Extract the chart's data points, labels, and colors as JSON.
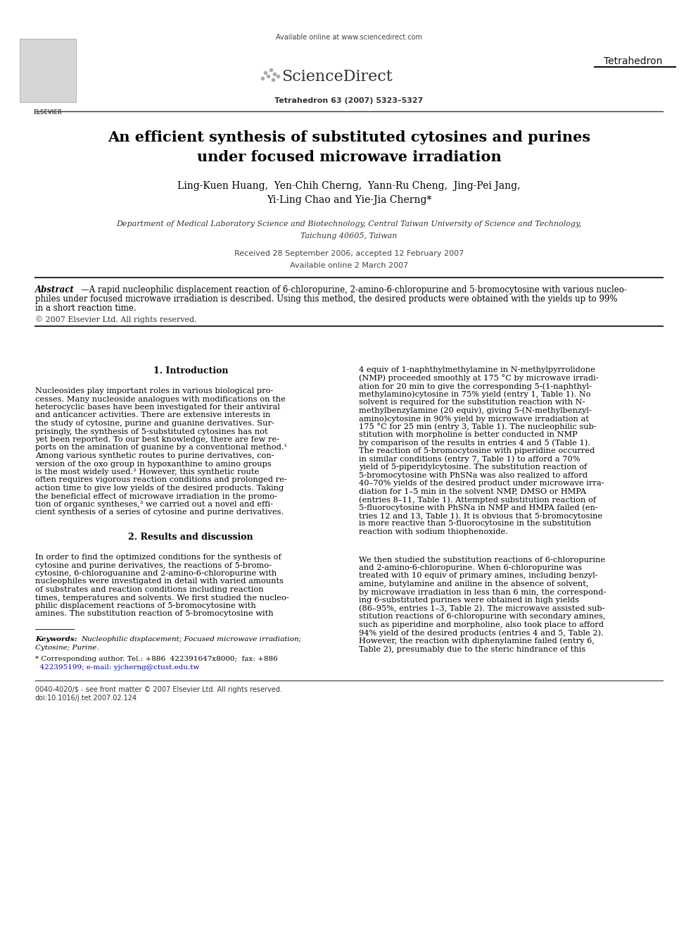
{
  "bg_color": "#ffffff",
  "page_width": 9.92,
  "page_height": 13.23,
  "dpi": 100,
  "header": {
    "available_online": "Available online at www.sciencedirect.com",
    "sciencedirect": "ScienceDirect",
    "journal_ref": "Tetrahedron 63 (2007) 5323–5327",
    "journal_name": "Tetrahedron"
  },
  "title_line1": "An efficient synthesis of substituted cytosines and purines",
  "title_line2": "under focused microwave irradiation",
  "authors_line1": "Ling-Kuen Huang,  Yen-Chih Cherng,  Yann-Ru Cheng,  Jing-Pei Jang,",
  "authors_line2": "Yi-Ling Chao and Yie-Jia Cherng*",
  "affiliation_line1": "Department of Medical Laboratory Science and Biotechnology, Central Taiwan University of Science and Technology,",
  "affiliation_line2": "Taichung 40605, Taiwan",
  "dates_line1": "Received 28 September 2006; accepted 12 February 2007",
  "dates_line2": "Available online 2 March 2007",
  "abstract_label": "Abstract",
  "abstract_body": "—A rapid nucleophilic displacement reaction of 6-chloropurine, 2-amino-6-chloropurine and 5-bromocytosine with various nucleo-\nphiles under focused microwave irradiation is described. Using this method, the desired products were obtained with the yields up to 99%\nin a short reaction time.",
  "copyright": "© 2007 Elsevier Ltd. All rights reserved.",
  "section1_title": "1. Introduction",
  "section1_left": [
    "Nucleosides play important roles in various biological pro-",
    "cesses. Many nucleoside analogues with modifications on the",
    "heterocyclic bases have been investigated for their antiviral",
    "and anticancer activities. There are extensive interests in",
    "the study of cytosine, purine and guanine derivatives. Sur-",
    "prisingly, the synthesis of 5-substituted cytosines has not",
    "yet been reported. To our best knowledge, there are few re-",
    "ports on the amination of guanine by a conventional method.¹",
    "Among various synthetic routes to purine derivatives, con-",
    "version of the oxo group in hypoxanthine to amino groups",
    "is the most widely used.² However, this synthetic route",
    "often requires vigorous reaction conditions and prolonged re-",
    "action time to give low yields of the desired products. Taking",
    "the beneficial effect of microwave irradiation in the promo-",
    "tion of organic syntheses,³ we carried out a novel and effi-",
    "cient synthesis of a series of cytosine and purine derivatives."
  ],
  "section1_right": [
    "4 equiv of 1-naphthylmethylamine in N-methylpyrrolidone",
    "(NMP) proceeded smoothly at 175 °C by microwave irradi-",
    "ation for 20 min to give the corresponding 5-(1-naphthyl-",
    "methylamino)cytosine in 75% yield (entry 1, Table 1). No",
    "solvent is required for the substitution reaction with N-",
    "methylbenzylamine (20 equiv), giving 5-(N-methylbenzyl-",
    "amino)cytosine in 90% yield by microwave irradiation at",
    "175 °C for 25 min (entry 3, Table 1). The nucleophilic sub-",
    "stitution with morpholine is better conducted in NMP",
    "by comparison of the results in entries 4 and 5 (Table 1).",
    "The reaction of 5-bromocytosine with piperidine occurred",
    "in similar conditions (entry 7, Table 1) to afford a 70%",
    "yield of 5-piperidylcytosine. The substitution reaction of",
    "5-bromocytosine with PhSNa was also realized to afford",
    "40–70% yields of the desired product under microwave irra-",
    "diation for 1–5 min in the solvent NMP, DMSO or HMPA",
    "(entries 8–11, Table 1). Attempted substitution reaction of",
    "5-fluorocytosine with PhSNa in NMP and HMPA failed (en-",
    "tries 12 and 13, Table 1). It is obvious that 5-bromocytosine",
    "is more reactive than 5-fluorocytosine in the substitution",
    "reaction with sodium thiophenoxide."
  ],
  "section2_title": "2. Results and discussion",
  "section2_left": [
    "In order to find the optimized conditions for the synthesis of",
    "cytosine and purine derivatives, the reactions of 5-bromo-",
    "cytosine, 6-chloroguanine and 2-amino-6-chloropurine with",
    "nucleophiles were investigated in detail with varied amounts",
    "of substrates and reaction conditions including reaction",
    "times, temperatures and solvents. We first studied the nucleo-",
    "philic displacement reactions of 5-bromocytosine with",
    "amines. The substitution reaction of 5-bromocytosine with"
  ],
  "section2_right": [
    "We then studied the substitution reactions of 6-chloropurine",
    "and 2-amino-6-chloropurine. When 6-chloropurine was",
    "treated with 10 equiv of primary amines, including benzyl-",
    "amine, butylamine and aniline in the absence of solvent,",
    "by microwave irradiation in less than 6 min, the correspond-",
    "ing 6-substituted purines were obtained in high yields",
    "(86–95%, entries 1–3, Table 2). The microwave assisted sub-",
    "stitution reactions of 6-chloropurine with secondary amines,",
    "such as piperidine and morpholine, also took place to afford",
    "94% yield of the desired products (entries 4 and 5, Table 2).",
    "However, the reaction with diphenylamine failed (entry 6,",
    "Table 2), presumably due to the steric hindrance of this"
  ],
  "keywords_label": "Keywords:",
  "keywords_text_line1": "Nucleophilic displacement; Focused microwave irradiation;",
  "keywords_text_line2": "Cytosine; Purine.",
  "corr_line1": "* Corresponding author. Tel.: +886  422391647x8000;  fax: +886",
  "corr_line2": "  422395199; e-mail: yjcherng@ctust.edu.tw",
  "footer_line1": "0040-4020/$ - see front matter © 2007 Elsevier Ltd. All rights reserved.",
  "footer_line2": "doi:10.1016/j.tet.2007.02.124"
}
